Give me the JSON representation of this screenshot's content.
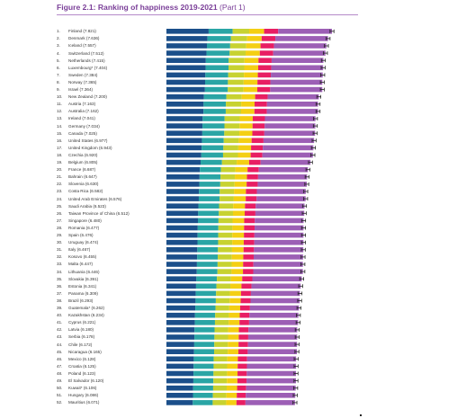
{
  "figure": {
    "title_bold": "Figure 2.1: Ranking of happiness 2019-2021",
    "title_part": "(Part 1)"
  },
  "chart_data": {
    "type": "bar",
    "orientation": "horizontal",
    "stacked": true,
    "xlim": [
      0,
      7.82
    ],
    "colors": [
      "#1b4f8a",
      "#2aa5a5",
      "#c7d231",
      "#f4cf13",
      "#e81e63",
      "#9c5fb5"
    ],
    "rows": [
      {
        "rank": "1.",
        "label": "Finland (7.821)",
        "value": 7.821
      },
      {
        "rank": "2.",
        "label": "Denmark (7.636)",
        "value": 7.636
      },
      {
        "rank": "3.",
        "label": "Iceland (7.557)",
        "value": 7.557
      },
      {
        "rank": "4.",
        "label": "Switzerland (7.512)",
        "value": 7.512
      },
      {
        "rank": "5.",
        "label": "Netherlands (7.415)",
        "value": 7.415
      },
      {
        "rank": "6.",
        "label": "Luxembourg* (7.404)",
        "value": 7.404
      },
      {
        "rank": "7.",
        "label": "Sweden (7.384)",
        "value": 7.384
      },
      {
        "rank": "8.",
        "label": "Norway (7.365)",
        "value": 7.365
      },
      {
        "rank": "9.",
        "label": "Israel (7.364)",
        "value": 7.364
      },
      {
        "rank": "10.",
        "label": "New Zealand (7.200)",
        "value": 7.2
      },
      {
        "rank": "11.",
        "label": "Austria (7.163)",
        "value": 7.163
      },
      {
        "rank": "12.",
        "label": "Australia (7.162)",
        "value": 7.162
      },
      {
        "rank": "13.",
        "label": "Ireland (7.041)",
        "value": 7.041
      },
      {
        "rank": "14.",
        "label": "Germany (7.034)",
        "value": 7.034
      },
      {
        "rank": "15.",
        "label": "Canada (7.025)",
        "value": 7.025
      },
      {
        "rank": "16.",
        "label": "United States (6.977)",
        "value": 6.977
      },
      {
        "rank": "17.",
        "label": "United Kingdom (6.943)",
        "value": 6.943
      },
      {
        "rank": "18.",
        "label": "Czechia (6.920)",
        "value": 6.92
      },
      {
        "rank": "19.",
        "label": "Belgium (6.805)",
        "value": 6.805
      },
      {
        "rank": "20.",
        "label": "France (6.687)",
        "value": 6.687
      },
      {
        "rank": "21.",
        "label": "Bahrain (6.647)",
        "value": 6.647
      },
      {
        "rank": "22.",
        "label": "Slovenia (6.630)",
        "value": 6.63
      },
      {
        "rank": "23.",
        "label": "Costa Rica (6.582)",
        "value": 6.582
      },
      {
        "rank": "24.",
        "label": "United Arab Emirates (6.576)",
        "value": 6.576
      },
      {
        "rank": "25.",
        "label": "Saudi Arabia (6.523)",
        "value": 6.523
      },
      {
        "rank": "26.",
        "label": "Taiwan Province of China (6.512)",
        "value": 6.512
      },
      {
        "rank": "27.",
        "label": "Singapore (6.480)",
        "value": 6.48
      },
      {
        "rank": "28.",
        "label": "Romania (6.477)",
        "value": 6.477
      },
      {
        "rank": "29.",
        "label": "Spain (6.476)",
        "value": 6.476
      },
      {
        "rank": "30.",
        "label": "Uruguay (6.474)",
        "value": 6.474
      },
      {
        "rank": "31.",
        "label": "Italy (6.467)",
        "value": 6.467
      },
      {
        "rank": "32.",
        "label": "Kosovo (6.455)",
        "value": 6.455
      },
      {
        "rank": "33.",
        "label": "Malta (6.447)",
        "value": 6.447
      },
      {
        "rank": "34.",
        "label": "Lithuania (6.446)",
        "value": 6.446
      },
      {
        "rank": "35.",
        "label": "Slovakia (6.391)",
        "value": 6.391
      },
      {
        "rank": "36.",
        "label": "Estonia (6.341)",
        "value": 6.341
      },
      {
        "rank": "37.",
        "label": "Panama (6.309)",
        "value": 6.309
      },
      {
        "rank": "38.",
        "label": "Brazil (6.293)",
        "value": 6.293
      },
      {
        "rank": "39.",
        "label": "Guatemala* (6.262)",
        "value": 6.262
      },
      {
        "rank": "40.",
        "label": "Kazakhstan (6.234)",
        "value": 6.234
      },
      {
        "rank": "41.",
        "label": "Cyprus (6.221)",
        "value": 6.221
      },
      {
        "rank": "42.",
        "label": "Latvia (6.180)",
        "value": 6.18
      },
      {
        "rank": "43.",
        "label": "Serbia (6.178)",
        "value": 6.178
      },
      {
        "rank": "44.",
        "label": "Chile (6.172)",
        "value": 6.172
      },
      {
        "rank": "45.",
        "label": "Nicaragua (6.165)",
        "value": 6.165
      },
      {
        "rank": "46.",
        "label": "Mexico (6.128)",
        "value": 6.128
      },
      {
        "rank": "47.",
        "label": "Croatia (6.125)",
        "value": 6.125
      },
      {
        "rank": "48.",
        "label": "Poland (6.123)",
        "value": 6.123
      },
      {
        "rank": "49.",
        "label": "El Salvador (6.120)",
        "value": 6.12
      },
      {
        "rank": "50.",
        "label": "Kuwait* (6.106)",
        "value": 6.106
      },
      {
        "rank": "51.",
        "label": "Hungary (6.086)",
        "value": 6.086
      },
      {
        "rank": "52.",
        "label": "Mauritius (6.071)",
        "value": 6.071
      }
    ]
  }
}
